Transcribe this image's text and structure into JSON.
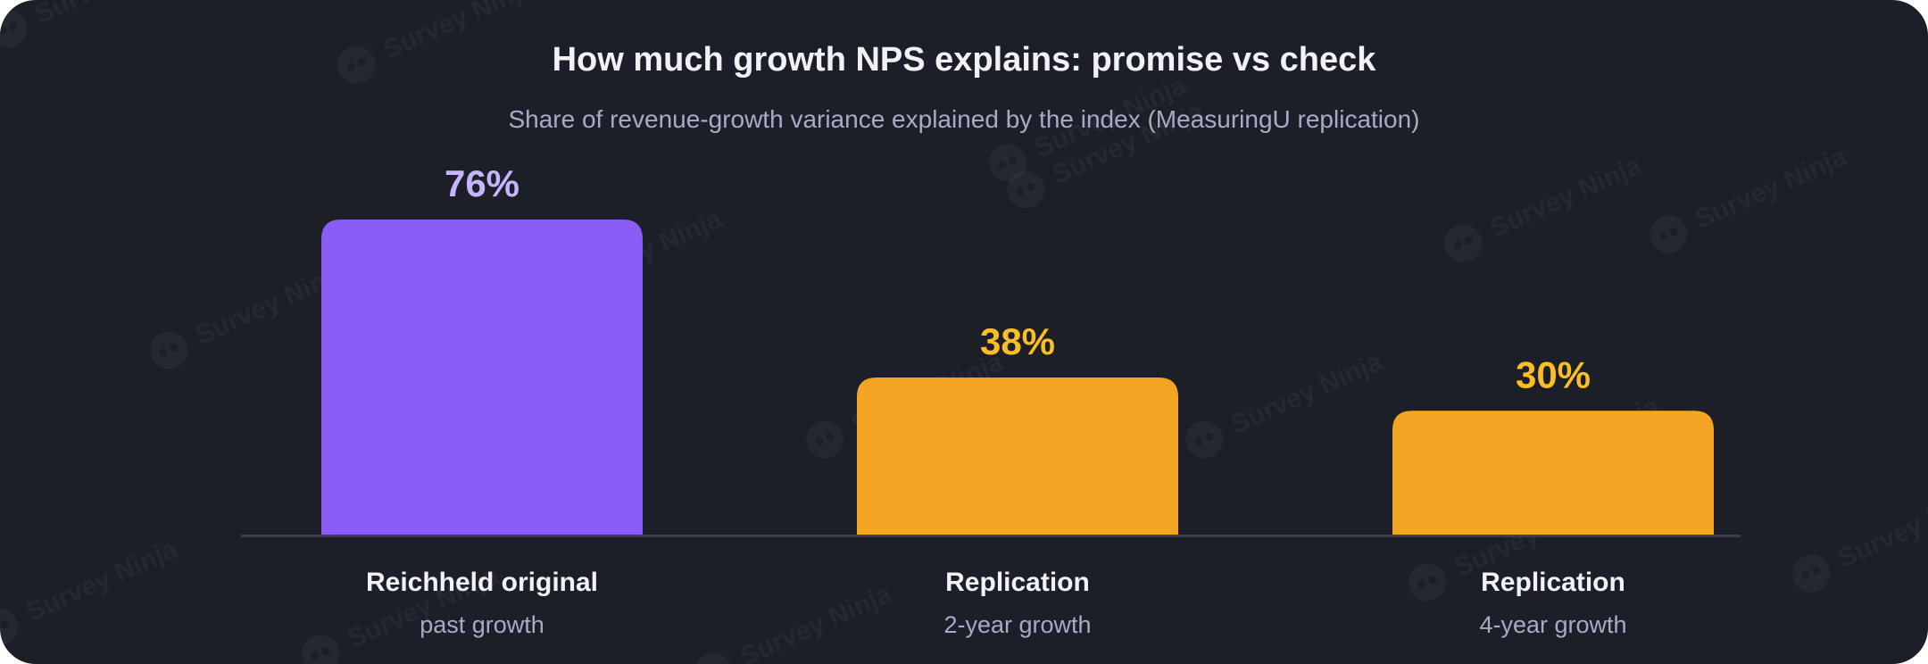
{
  "watermark": {
    "text": "Survey Ninja",
    "icon": "ninja-logo-icon"
  },
  "chart_data": {
    "type": "bar",
    "title": "How much growth NPS explains: promise vs check",
    "subtitle": "Share of revenue-growth variance explained by the index (MeasuringU replication)",
    "xlabel": "",
    "ylabel": "",
    "ylim": [
      0,
      100
    ],
    "grid": false,
    "legend": "none",
    "value_suffix": "%",
    "categories": [
      {
        "label": "Reichheld original",
        "sublabel": "past growth",
        "value": 76,
        "color": "#8b5cf6",
        "label_color": "#c4b5fd"
      },
      {
        "label": "Replication",
        "sublabel": "2-year growth",
        "value": 38,
        "color": "#f4a524",
        "label_color": "#fbbf24"
      },
      {
        "label": "Replication",
        "sublabel": "4-year growth",
        "value": 30,
        "color": "#f4a524",
        "label_color": "#fbbf24"
      }
    ],
    "baseline_color": "#3a3d4e",
    "category_label_color": "#f2f2f6",
    "sublabel_color": "#a7abc6"
  }
}
